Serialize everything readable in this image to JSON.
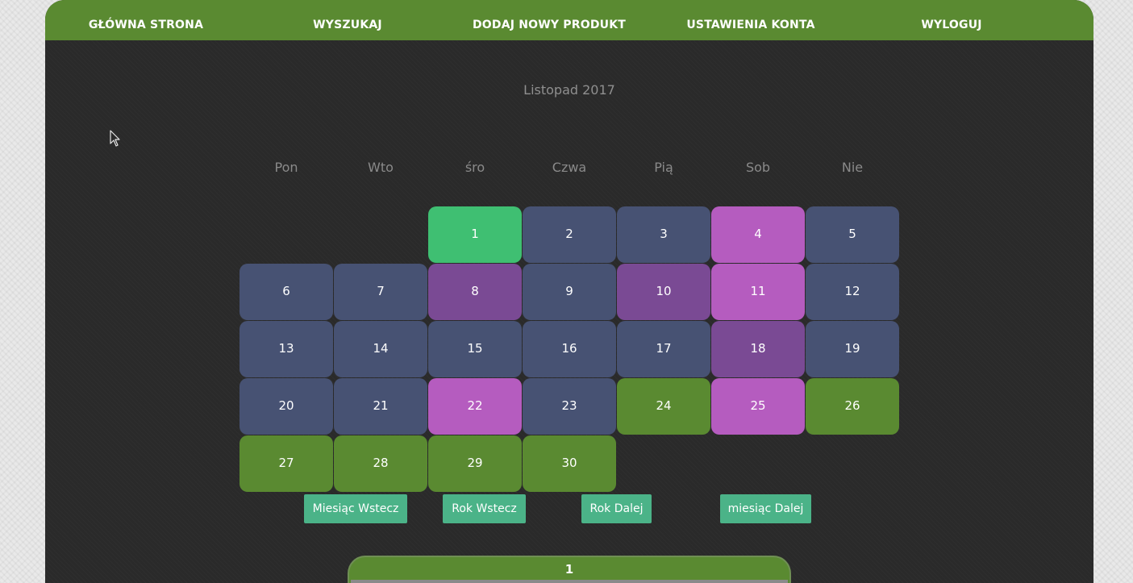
{
  "nav": {
    "items": [
      {
        "label": "GŁÓWNA STRONA"
      },
      {
        "label": "WYSZUKAJ"
      },
      {
        "label": "DODAJ NOWY PRODUKT"
      },
      {
        "label": "USTAWIENIA KONTA"
      },
      {
        "label": "WYLOGUJ"
      }
    ]
  },
  "calendar": {
    "title": "Listopad 2017",
    "weekdays": [
      "Pon",
      "Wto",
      "śro",
      "Czwa",
      "Pią",
      "Sob",
      "Nie"
    ],
    "days": [
      {
        "n": "1",
        "color": "#3fbf72"
      },
      {
        "n": "2",
        "color": "#475273"
      },
      {
        "n": "3",
        "color": "#475273"
      },
      {
        "n": "4",
        "color": "#b55cbf"
      },
      {
        "n": "5",
        "color": "#475273"
      },
      {
        "n": "6",
        "color": "#475273"
      },
      {
        "n": "7",
        "color": "#475273"
      },
      {
        "n": "8",
        "color": "#7a4a94"
      },
      {
        "n": "9",
        "color": "#475273"
      },
      {
        "n": "10",
        "color": "#7a4a94"
      },
      {
        "n": "11",
        "color": "#b55cbf"
      },
      {
        "n": "12",
        "color": "#475273"
      },
      {
        "n": "13",
        "color": "#475273"
      },
      {
        "n": "14",
        "color": "#475273"
      },
      {
        "n": "15",
        "color": "#475273"
      },
      {
        "n": "16",
        "color": "#475273"
      },
      {
        "n": "17",
        "color": "#475273"
      },
      {
        "n": "18",
        "color": "#7a4a94"
      },
      {
        "n": "19",
        "color": "#475273"
      },
      {
        "n": "20",
        "color": "#475273"
      },
      {
        "n": "21",
        "color": "#475273"
      },
      {
        "n": "22",
        "color": "#b55cbf"
      },
      {
        "n": "23",
        "color": "#475273"
      },
      {
        "n": "24",
        "color": "#5a8a31"
      },
      {
        "n": "25",
        "color": "#b55cbf"
      },
      {
        "n": "26",
        "color": "#5a8a31"
      },
      {
        "n": "27",
        "color": "#5a8a31"
      },
      {
        "n": "28",
        "color": "#5a8a31"
      },
      {
        "n": "29",
        "color": "#5a8a31"
      },
      {
        "n": "30",
        "color": "#5a8a31"
      }
    ]
  },
  "buttons": {
    "prev_month": "Miesiąc Wstecz",
    "prev_year": "Rok Wstecz",
    "next_year": "Rok Dalej",
    "next_month": "miesiąc Dalej"
  },
  "bottom_panel": {
    "title": "1"
  },
  "colors": {
    "nav": "#5a8a31",
    "accent_button": "#4bb388",
    "background": "#2a2a2a"
  }
}
